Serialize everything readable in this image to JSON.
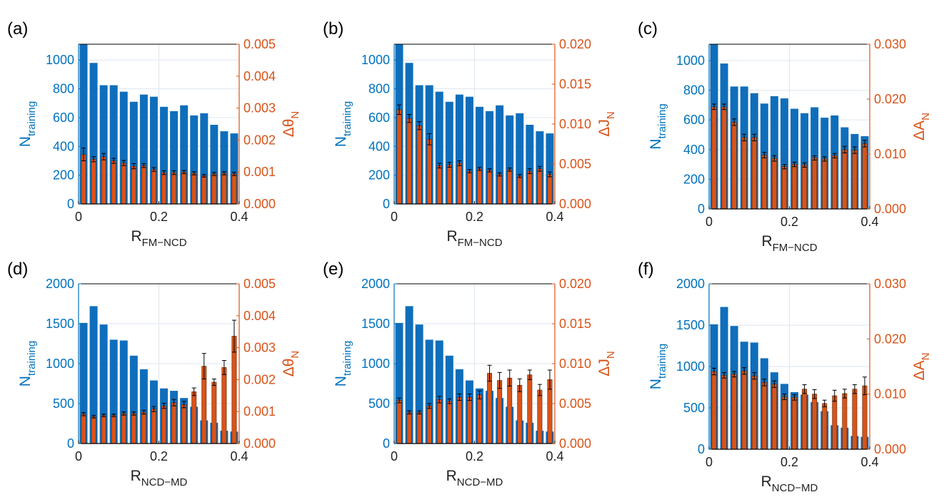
{
  "colors": {
    "blue": "#0072BD",
    "orange": "#D95319",
    "bar_blue": "#0F6EBB",
    "bar_orange": "#D95319",
    "frame": "#000000"
  },
  "chart_data": [
    {
      "type": "bar",
      "panel_label": "(a)",
      "xlabel": {
        "main": "R",
        "sub": "FM−NCD"
      },
      "ylabel_left": {
        "main": "N",
        "sub": "training"
      },
      "ylabel_right": {
        "main": "Δθ",
        "sub": "N"
      },
      "xlim": [
        0,
        0.4
      ],
      "xticks": [
        "0",
        "0.2",
        "0.4"
      ],
      "ylim_left": [
        0,
        1110
      ],
      "yticks_left": [
        "0",
        "200",
        "400",
        "600",
        "800",
        "1000"
      ],
      "ylim_right": [
        0,
        0.005
      ],
      "yticks_right": [
        "0.000",
        "0.001",
        "0.002",
        "0.003",
        "0.004",
        "0.005"
      ],
      "x": [
        0.0125,
        0.0375,
        0.0625,
        0.0875,
        0.1125,
        0.1375,
        0.1625,
        0.1875,
        0.2125,
        0.2375,
        0.2625,
        0.2875,
        0.3125,
        0.3375,
        0.3625,
        0.3875
      ],
      "n_training": [
        1120,
        980,
        825,
        825,
        780,
        710,
        760,
        745,
        675,
        645,
        685,
        615,
        630,
        550,
        505,
        490
      ],
      "right_values": [
        0.00155,
        0.0014,
        0.00148,
        0.00135,
        0.00128,
        0.00118,
        0.0012,
        0.00108,
        0.00098,
        0.00098,
        0.001,
        0.00096,
        0.00088,
        0.00094,
        0.00096,
        0.00094
      ],
      "right_errors": [
        0.0002,
        8e-05,
        0.0001,
        8e-05,
        8e-05,
        8e-05,
        6e-05,
        6e-05,
        6e-05,
        6e-05,
        5e-05,
        5e-05,
        4e-05,
        5e-05,
        5e-05,
        5e-05
      ]
    },
    {
      "type": "bar",
      "panel_label": "(b)",
      "xlabel": {
        "main": "R",
        "sub": "FM−NCD"
      },
      "ylabel_left": {
        "main": "N",
        "sub": "training"
      },
      "ylabel_right": {
        "main": "ΔJ",
        "sub": "N"
      },
      "xlim": [
        0,
        0.4
      ],
      "xticks": [
        "0",
        "0.2",
        "0.4"
      ],
      "ylim_left": [
        0,
        1110
      ],
      "yticks_left": [
        "0",
        "200",
        "400",
        "600",
        "800",
        "1000"
      ],
      "ylim_right": [
        0,
        0.02
      ],
      "yticks_right": [
        "0.000",
        "0.005",
        "0.010",
        "0.015",
        "0.020"
      ],
      "x": [
        0.0125,
        0.0375,
        0.0625,
        0.0875,
        0.1125,
        0.1375,
        0.1625,
        0.1875,
        0.2125,
        0.2375,
        0.2625,
        0.2875,
        0.3125,
        0.3375,
        0.3625,
        0.3875
      ],
      "n_training": [
        1120,
        980,
        825,
        825,
        780,
        710,
        760,
        745,
        675,
        645,
        685,
        615,
        630,
        550,
        505,
        490
      ],
      "right_values": [
        0.0118,
        0.0107,
        0.0098,
        0.0081,
        0.0048,
        0.0049,
        0.0051,
        0.0041,
        0.0044,
        0.0042,
        0.0037,
        0.0043,
        0.0035,
        0.0041,
        0.0044,
        0.0037
      ],
      "right_errors": [
        0.0006,
        0.0005,
        0.0005,
        0.0007,
        0.0003,
        0.0003,
        0.0003,
        0.0002,
        0.0002,
        0.0002,
        0.0002,
        0.0002,
        0.0002,
        0.0003,
        0.0003,
        0.0003
      ]
    },
    {
      "type": "bar",
      "panel_label": "(c)",
      "xlabel": {
        "main": "R",
        "sub": "FM−NCD"
      },
      "ylabel_left": {
        "main": "N",
        "sub": "training"
      },
      "ylabel_right": {
        "main": "ΔA",
        "sub": "N"
      },
      "xlim": [
        0,
        0.4
      ],
      "xticks": [
        "0",
        "0.2",
        "0.4"
      ],
      "ylim_left": [
        0,
        1110
      ],
      "yticks_left": [
        "0",
        "200",
        "400",
        "600",
        "800",
        "1000"
      ],
      "ylim_right": [
        0,
        0.03
      ],
      "yticks_right": [
        "0.000",
        "0.010",
        "0.020",
        "0.030"
      ],
      "x": [
        0.0125,
        0.0375,
        0.0625,
        0.0875,
        0.1125,
        0.1375,
        0.1625,
        0.1875,
        0.2125,
        0.2375,
        0.2625,
        0.2875,
        0.3125,
        0.3375,
        0.3625,
        0.3875
      ],
      "n_training": [
        1120,
        980,
        825,
        825,
        780,
        710,
        760,
        745,
        675,
        645,
        685,
        615,
        630,
        550,
        505,
        490
      ],
      "right_values": [
        0.0186,
        0.0186,
        0.0158,
        0.013,
        0.013,
        0.0098,
        0.0092,
        0.0077,
        0.0081,
        0.008,
        0.0093,
        0.0091,
        0.0097,
        0.0108,
        0.0107,
        0.0119
      ],
      "right_errors": [
        0.0005,
        0.0005,
        0.0006,
        0.0006,
        0.0006,
        0.0005,
        0.0005,
        0.0004,
        0.0004,
        0.0004,
        0.0004,
        0.0004,
        0.0004,
        0.0006,
        0.0006,
        0.0006
      ]
    },
    {
      "type": "bar",
      "panel_label": "(d)",
      "xlabel": {
        "main": "R",
        "sub": "NCD−MD"
      },
      "ylabel_left": {
        "main": "N",
        "sub": "training"
      },
      "ylabel_right": {
        "main": "Δθ",
        "sub": "N"
      },
      "xlim": [
        0,
        0.4
      ],
      "xticks": [
        "0",
        "0.2",
        "0.4"
      ],
      "ylim_left": [
        0,
        2000
      ],
      "yticks_left": [
        "0",
        "500",
        "1000",
        "1500",
        "2000"
      ],
      "ylim_right": [
        0,
        0.005
      ],
      "yticks_right": [
        "0.000",
        "0.001",
        "0.002",
        "0.003",
        "0.004",
        "0.005"
      ],
      "x": [
        0.0125,
        0.0375,
        0.0625,
        0.0875,
        0.1125,
        0.1375,
        0.1625,
        0.1875,
        0.2125,
        0.2375,
        0.2625,
        0.2875,
        0.3125,
        0.3375,
        0.3625,
        0.3875
      ],
      "n_training": [
        1510,
        1720,
        1490,
        1300,
        1290,
        1100,
        930,
        790,
        690,
        660,
        570,
        460,
        290,
        260,
        160,
        150
      ],
      "right_values": [
        0.00092,
        0.00084,
        0.00088,
        0.00088,
        0.00094,
        0.00094,
        0.00098,
        0.00108,
        0.00118,
        0.00128,
        0.00122,
        0.00162,
        0.00242,
        0.00192,
        0.00238,
        0.00336
      ],
      "right_errors": [
        5e-05,
        4e-05,
        4e-05,
        4e-05,
        5e-05,
        5e-05,
        6e-05,
        8e-05,
        8e-05,
        0.0001,
        0.0001,
        0.00012,
        0.0004,
        0.0001,
        0.00022,
        0.0005
      ]
    },
    {
      "type": "bar",
      "panel_label": "(e)",
      "xlabel": {
        "main": "R",
        "sub": "NCD−MD"
      },
      "ylabel_left": {
        "main": "N",
        "sub": "training"
      },
      "ylabel_right": {
        "main": "ΔJ",
        "sub": "N"
      },
      "xlim": [
        0,
        0.4
      ],
      "xticks": [
        "0",
        "0.2",
        "0.4"
      ],
      "ylim_left": [
        0,
        2000
      ],
      "yticks_left": [
        "0",
        "500",
        "1000",
        "1500",
        "2000"
      ],
      "ylim_right": [
        0,
        0.02
      ],
      "yticks_right": [
        "0.000",
        "0.005",
        "0.010",
        "0.015",
        "0.020"
      ],
      "x": [
        0.0125,
        0.0375,
        0.0625,
        0.0875,
        0.1125,
        0.1375,
        0.1625,
        0.1875,
        0.2125,
        0.2375,
        0.2625,
        0.2875,
        0.3125,
        0.3375,
        0.3625,
        0.3875
      ],
      "n_training": [
        1510,
        1720,
        1490,
        1300,
        1290,
        1100,
        930,
        790,
        690,
        660,
        570,
        460,
        290,
        260,
        160,
        150
      ],
      "right_values": [
        0.0054,
        0.0039,
        0.0039,
        0.0047,
        0.0055,
        0.0053,
        0.0058,
        0.0058,
        0.0061,
        0.0088,
        0.0079,
        0.0082,
        0.0073,
        0.0086,
        0.0067,
        0.008
      ],
      "right_errors": [
        0.0003,
        0.0002,
        0.0002,
        0.0003,
        0.0004,
        0.0003,
        0.0004,
        0.0004,
        0.0005,
        0.001,
        0.001,
        0.001,
        0.0008,
        0.0006,
        0.0007,
        0.0012
      ]
    },
    {
      "type": "bar",
      "panel_label": "(f)",
      "xlabel": {
        "main": "R",
        "sub": "NCD−MD"
      },
      "ylabel_left": {
        "main": "N",
        "sub": "training"
      },
      "ylabel_right": {
        "main": "ΔA",
        "sub": "N"
      },
      "xlim": [
        0,
        0.4
      ],
      "xticks": [
        "0",
        "0.2",
        "0.4"
      ],
      "ylim_left": [
        0,
        2000
      ],
      "yticks_left": [
        "0",
        "500",
        "1000",
        "1500",
        "2000"
      ],
      "ylim_right": [
        0,
        0.03
      ],
      "yticks_right": [
        "0.000",
        "0.010",
        "0.020",
        "0.030"
      ],
      "x": [
        0.0125,
        0.0375,
        0.0625,
        0.0875,
        0.1125,
        0.1375,
        0.1625,
        0.1875,
        0.2125,
        0.2375,
        0.2625,
        0.2875,
        0.3125,
        0.3375,
        0.3625,
        0.3875
      ],
      "n_training": [
        1510,
        1720,
        1490,
        1300,
        1290,
        1100,
        930,
        790,
        690,
        660,
        570,
        460,
        290,
        260,
        160,
        150
      ],
      "right_values": [
        0.0141,
        0.0134,
        0.0136,
        0.0142,
        0.0133,
        0.0121,
        0.0118,
        0.0095,
        0.0094,
        0.0109,
        0.01,
        0.0083,
        0.0097,
        0.0101,
        0.0109,
        0.0115
      ],
      "right_errors": [
        0.0006,
        0.0005,
        0.0005,
        0.0006,
        0.0006,
        0.0006,
        0.0006,
        0.0005,
        0.0005,
        0.0008,
        0.0008,
        0.0006,
        0.001,
        0.0008,
        0.0008,
        0.0016
      ]
    }
  ]
}
